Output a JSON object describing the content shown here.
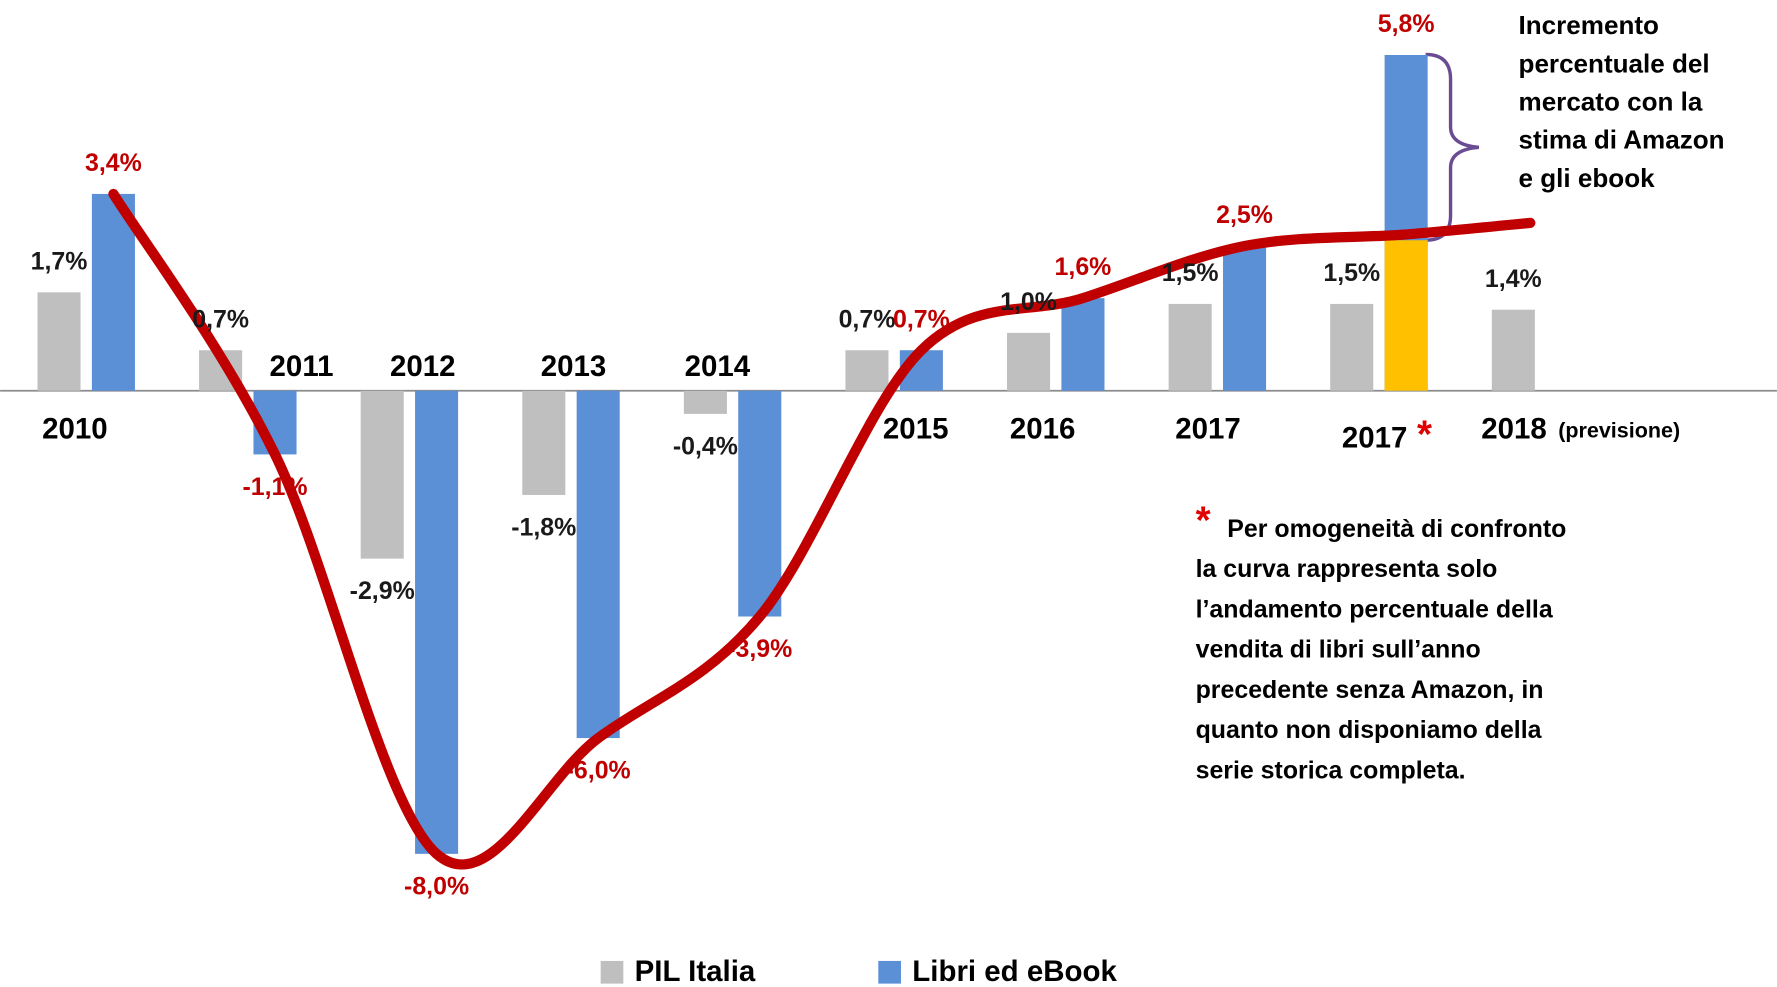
{
  "chart_data": {
    "type": "bar",
    "categories": [
      "2010",
      "2011",
      "2012",
      "2013",
      "2014",
      "2015",
      "2016",
      "2017",
      "2017",
      "2018"
    ],
    "ylim": [
      -10.3,
      6.75
    ],
    "series": [
      {
        "name": "PIL Italia",
        "color": "#bfbfbf",
        "values": [
          1.7,
          0.7,
          -2.9,
          -1.8,
          -0.4,
          0.7,
          1.0,
          1.5,
          1.5,
          1.4
        ],
        "value_labels": [
          "1,7%",
          "0,7%",
          "-2,9%",
          "-1,8%",
          "-0,4%",
          "0,7%",
          "1,0%",
          "1,5%",
          "1,5%",
          "1,4%"
        ]
      },
      {
        "name": "Libri ed eBook",
        "color": "#5b8fd6",
        "values": [
          3.4,
          -1.1,
          -8.0,
          -6.0,
          -3.9,
          0.7,
          1.6,
          2.5,
          5.8,
          null
        ],
        "value_labels": [
          "3,4%",
          "-1,1%",
          "-8,0%",
          "-6,0%",
          "-3,9%",
          "0,7%",
          "1,6%",
          "2,5%",
          "5,8%",
          null
        ]
      }
    ],
    "highlight": {
      "color": "#ffc000",
      "category": 8,
      "value": 2.6
    },
    "curve": {
      "color": "#c00000",
      "values": [
        3.4,
        -1.1,
        -8.0,
        -6.0,
        -3.9,
        0.7,
        1.6,
        2.5,
        2.7,
        2.9
      ]
    },
    "asterisk": "*",
    "forecast_note": "(previsione)",
    "bracket_note": [
      "Incremento",
      "percentuale del",
      "mercato con la",
      "stima di  Amazon",
      "e gli ebook"
    ],
    "footnote": [
      "Per omogeneità di confronto",
      "la curva rappresenta solo",
      "l’andamento percentuale della",
      "vendita di libri sull’anno",
      "precedente senza Amazon, in",
      "quanto non disponiamo della",
      "serie storica completa."
    ]
  }
}
